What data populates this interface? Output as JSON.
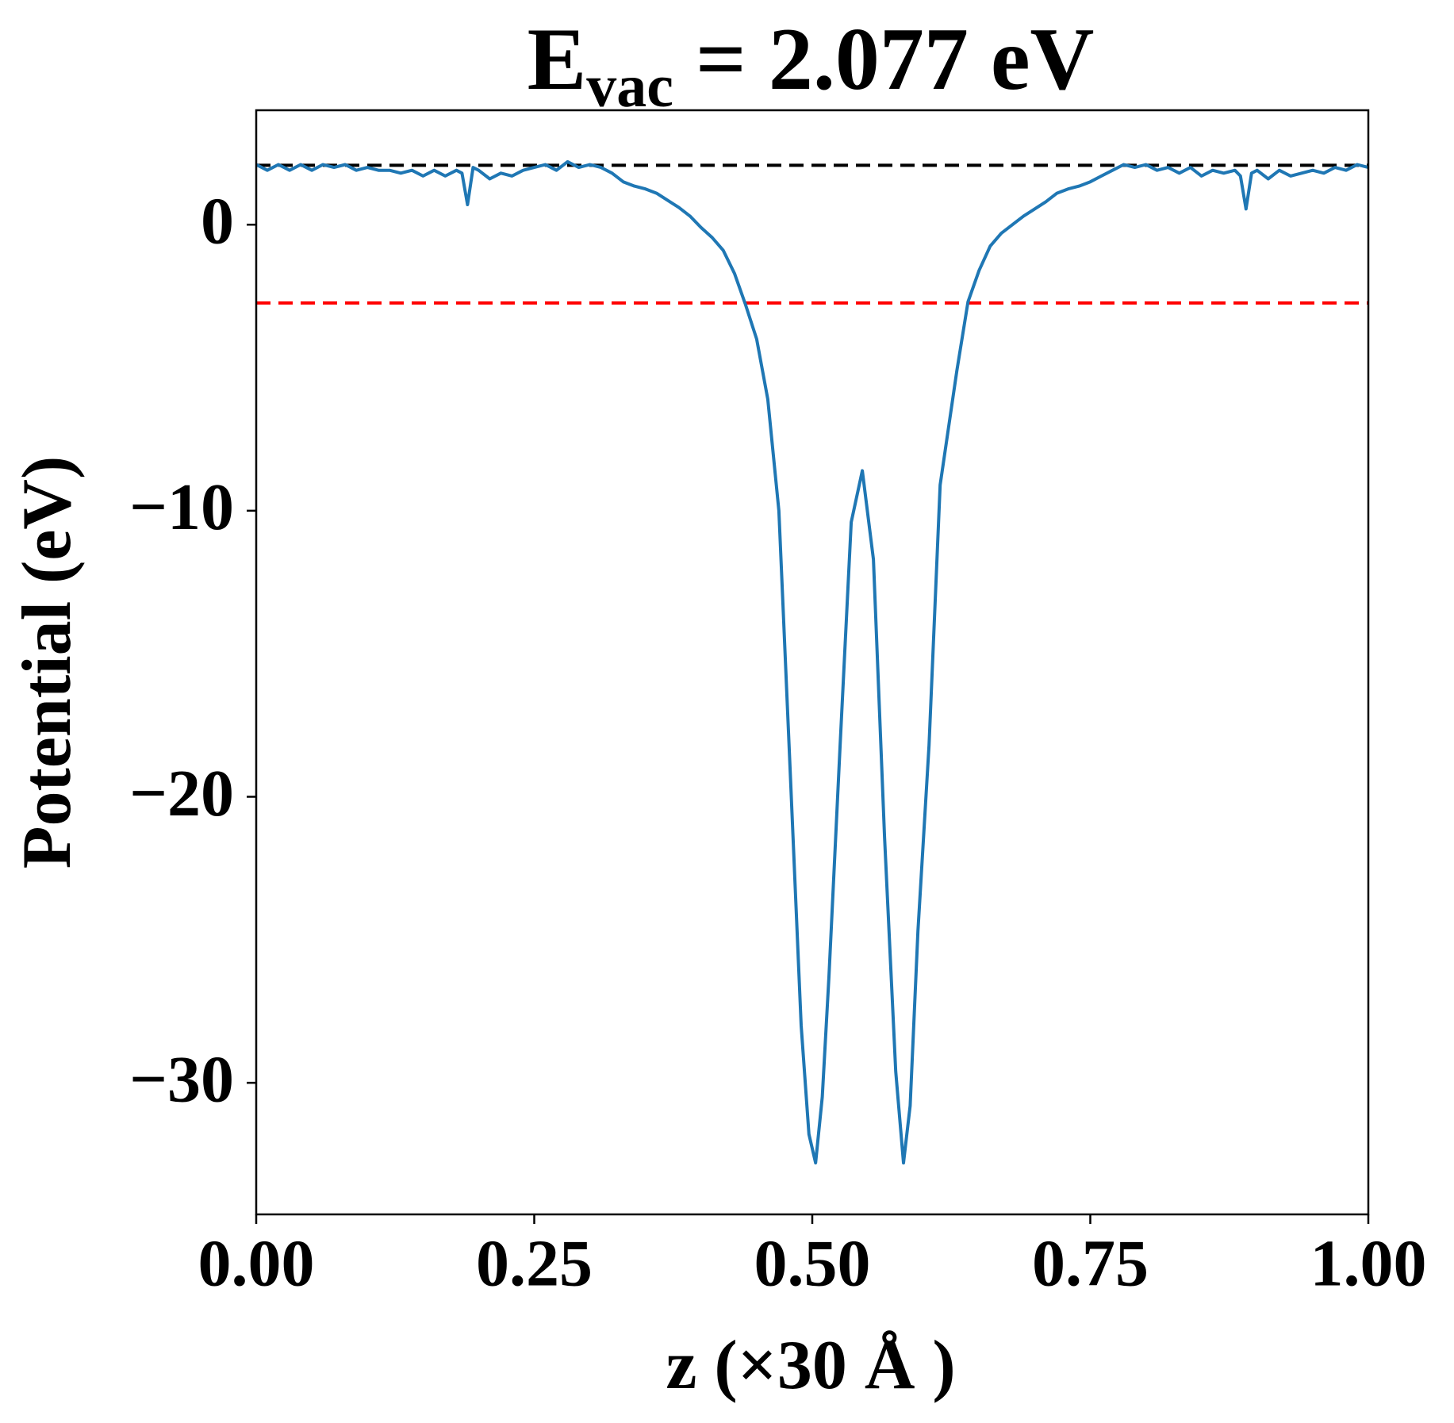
{
  "chart_data": {
    "type": "line",
    "title_main": "E",
    "title_sub": "vac",
    "title_rest": "= 2.077 eV",
    "xlabel": "z (×30 Å )",
    "ylabel": "Potential (eV)",
    "xlim": [
      0,
      1
    ],
    "ylim": [
      -34.6,
      4.0
    ],
    "xticks": [
      {
        "value": 0,
        "label": "0.00"
      },
      {
        "value": 0.25,
        "label": "0.25"
      },
      {
        "value": 0.5,
        "label": "0.50"
      },
      {
        "value": 0.75,
        "label": "0.75"
      },
      {
        "value": 1,
        "label": "1.00"
      }
    ],
    "yticks": [
      0,
      {
        "value": -10,
        "label": "−10"
      },
      {
        "value": -20,
        "label": "−20"
      },
      {
        "value": -30,
        "label": "−30"
      }
    ],
    "hlines": [
      {
        "value": 2.077,
        "color": "#000000"
      },
      {
        "value": -2.74,
        "color": "#ff0000"
      }
    ],
    "series": [
      {
        "color": "#1f77b4",
        "x": [
          0,
          0.01,
          0.02,
          0.03,
          0.04,
          0.05,
          0.06,
          0.07,
          0.08,
          0.09,
          0.1,
          0.11,
          0.12,
          0.13,
          0.14,
          0.15,
          0.16,
          0.17,
          0.18,
          0.185,
          0.19,
          0.195,
          0.2,
          0.21,
          0.22,
          0.23,
          0.24,
          0.25,
          0.26,
          0.27,
          0.28,
          0.29,
          0.3,
          0.31,
          0.32,
          0.33,
          0.34,
          0.35,
          0.36,
          0.37,
          0.38,
          0.39,
          0.4,
          0.41,
          0.42,
          0.43,
          0.44,
          0.45,
          0.46,
          0.47,
          0.48,
          0.49,
          0.497,
          0.503,
          0.509,
          0.515,
          0.525,
          0.535,
          0.545,
          0.555,
          0.565,
          0.575,
          0.582,
          0.588,
          0.595,
          0.605,
          0.615,
          0.63,
          0.64,
          0.65,
          0.66,
          0.67,
          0.68,
          0.69,
          0.7,
          0.71,
          0.72,
          0.73,
          0.74,
          0.75,
          0.76,
          0.77,
          0.78,
          0.79,
          0.8,
          0.81,
          0.82,
          0.83,
          0.84,
          0.85,
          0.86,
          0.87,
          0.88,
          0.885,
          0.89,
          0.895,
          0.9,
          0.91,
          0.92,
          0.93,
          0.94,
          0.95,
          0.96,
          0.97,
          0.98,
          0.99,
          1
        ],
        "values": [
          2.1,
          1.9,
          2.1,
          1.9,
          2.1,
          1.9,
          2.1,
          2.0,
          2.1,
          1.9,
          2.0,
          1.9,
          1.9,
          1.8,
          1.9,
          1.7,
          1.9,
          1.7,
          1.9,
          1.8,
          0.7,
          2.0,
          1.9,
          1.6,
          1.8,
          1.7,
          1.9,
          2.0,
          2.1,
          1.9,
          2.2,
          2.0,
          2.1,
          2.0,
          1.8,
          1.5,
          1.35,
          1.25,
          1.1,
          0.85,
          0.6,
          0.3,
          -0.1,
          -0.45,
          -0.9,
          -1.7,
          -2.8,
          -4.0,
          -6.1,
          -10.0,
          -19.0,
          -28.0,
          -31.8,
          -32.8,
          -30.5,
          -26.3,
          -18.2,
          -10.4,
          -8.6,
          -11.7,
          -21.4,
          -29.6,
          -32.8,
          -30.8,
          -24.7,
          -18.2,
          -9.1,
          -5.1,
          -2.7,
          -1.6,
          -0.75,
          -0.3,
          0.0,
          0.3,
          0.55,
          0.8,
          1.1,
          1.25,
          1.35,
          1.5,
          1.7,
          1.9,
          2.1,
          2.0,
          2.1,
          1.9,
          2.0,
          1.8,
          2.0,
          1.7,
          1.9,
          1.8,
          1.9,
          1.7,
          0.55,
          1.8,
          1.9,
          1.6,
          1.9,
          1.7,
          1.8,
          1.9,
          1.8,
          2.0,
          1.9,
          2.1,
          2.0
        ]
      }
    ]
  }
}
